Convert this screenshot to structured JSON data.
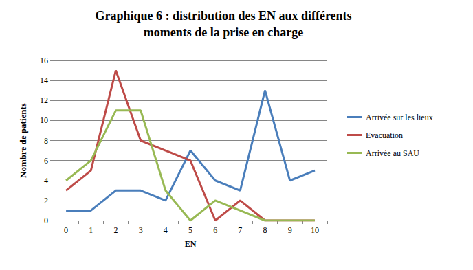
{
  "chart_data": {
    "type": "line",
    "title": "Graphique 6 : distribution des EN aux différents\nmoments de la prise en charge",
    "x_label": "EN",
    "y_label": "Nombre de patients",
    "categories": [
      "0",
      "1",
      "2",
      "3",
      "4",
      "5",
      "6",
      "7",
      "8",
      "9",
      "10"
    ],
    "series": [
      {
        "name": "Arrivée sur les lieux",
        "color": "#4a7ebb",
        "values": [
          1,
          1,
          3,
          3,
          2,
          7,
          4,
          3,
          13,
          4,
          5
        ]
      },
      {
        "name": "Evacuation",
        "color": "#be4b48",
        "values": [
          3,
          5,
          15,
          8,
          7,
          6,
          0,
          2,
          0,
          0,
          0
        ]
      },
      {
        "name": "Arrivée au SAU",
        "color": "#98b954",
        "values": [
          4,
          6,
          11,
          11,
          3,
          0,
          2,
          1,
          0,
          0,
          0
        ]
      }
    ],
    "ylim": [
      0,
      16
    ],
    "yticks": [
      0,
      2,
      4,
      6,
      8,
      10,
      12,
      14,
      16
    ],
    "grid": true,
    "legend": "right",
    "marker": "none"
  }
}
